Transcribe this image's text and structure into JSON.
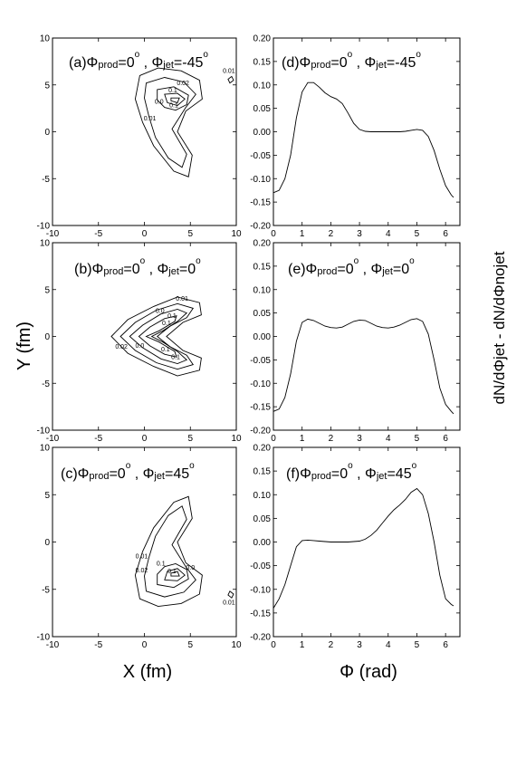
{
  "figure": {
    "xlabel_left": "X (fm)",
    "ylabel_left": "Y (fm)",
    "xlabel_right": "Φ (rad)",
    "ylabel_right": "dN/dΦjet - dN/dΦnojet"
  },
  "chart_data": [
    {
      "id": "a",
      "type": "contour",
      "title": "(a)Φprod=0°, Φjet=-45°",
      "panel_label": "(a)",
      "prod_label": "prod",
      "jet_label": "jet",
      "prod_value": "0",
      "jet_value": "-45",
      "degree": "o",
      "xlim": [
        -10,
        10
      ],
      "ylim": [
        -10,
        10
      ],
      "xticks": [
        -10,
        -5,
        0,
        5,
        10
      ],
      "yticks": [
        -10,
        -5,
        0,
        5,
        10
      ],
      "contour_labels": [
        "0.02",
        "0.0",
        "0.01",
        "0.1",
        "0.1",
        "0.01"
      ]
    },
    {
      "id": "b",
      "type": "contour",
      "title": "(b)Φprod=0°, Φjet=0°",
      "panel_label": "(b)",
      "prod_label": "prod",
      "jet_label": "jet",
      "prod_value": "0",
      "jet_value": "0",
      "degree": "o",
      "xlim": [
        -10,
        10
      ],
      "ylim": [
        -10,
        10
      ],
      "xticks": [
        -10,
        -5,
        0,
        5,
        10
      ],
      "yticks": [
        -10,
        -5,
        0,
        5,
        10
      ],
      "contour_labels": [
        "0.01",
        "0.0",
        "0.1",
        "0.1",
        "0.02",
        "0.0",
        "0.1",
        "0.1"
      ]
    },
    {
      "id": "c",
      "type": "contour",
      "title": "(c)Φprod=0°, Φjet=45°",
      "panel_label": "(c)",
      "prod_label": "prod",
      "jet_label": "jet",
      "prod_value": "0",
      "jet_value": "45",
      "degree": "o",
      "xlim": [
        -10,
        10
      ],
      "ylim": [
        -10,
        10
      ],
      "xticks": [
        -10,
        -5,
        0,
        5,
        10
      ],
      "yticks": [
        -10,
        -5,
        0,
        5,
        10
      ],
      "contour_labels": [
        "0.01",
        "0.1",
        "0.02",
        "0.1",
        "0.0",
        "0.01"
      ]
    },
    {
      "id": "d",
      "type": "line",
      "title": "(d)Φprod=0°, Φjet=-45°",
      "panel_label": "(d)",
      "prod_label": "prod",
      "jet_label": "jet",
      "prod_value": "0",
      "jet_value": "-45",
      "degree": "o",
      "xlim": [
        0,
        6.5
      ],
      "ylim": [
        -0.2,
        0.2
      ],
      "xticks": [
        0,
        1,
        2,
        3,
        4,
        5,
        6
      ],
      "yticks": [
        -0.2,
        -0.15,
        -0.1,
        -0.05,
        0.0,
        0.05,
        0.1,
        0.15,
        0.2
      ],
      "x": [
        0,
        0.2,
        0.4,
        0.6,
        0.8,
        1.0,
        1.2,
        1.4,
        1.6,
        1.8,
        2.0,
        2.2,
        2.4,
        2.6,
        2.8,
        3.0,
        3.2,
        3.4,
        3.6,
        3.8,
        4.0,
        4.2,
        4.4,
        4.6,
        4.8,
        5.0,
        5.2,
        5.4,
        5.6,
        5.8,
        6.0,
        6.2,
        6.28
      ],
      "y": [
        -0.13,
        -0.125,
        -0.1,
        -0.05,
        0.03,
        0.085,
        0.105,
        0.105,
        0.095,
        0.083,
        0.075,
        0.07,
        0.06,
        0.04,
        0.018,
        0.005,
        0.001,
        0.0,
        0.0,
        0.0,
        0.0,
        0.0,
        0.0,
        0.001,
        0.003,
        0.005,
        0.003,
        -0.01,
        -0.04,
        -0.08,
        -0.115,
        -0.135,
        -0.14
      ]
    },
    {
      "id": "e",
      "type": "line",
      "title": "(e)Φprod=0°, Φjet=0°",
      "panel_label": "(e)",
      "prod_label": "prod",
      "jet_label": "jet",
      "prod_value": "0",
      "jet_value": "0",
      "degree": "o",
      "xlim": [
        0,
        6.5
      ],
      "ylim": [
        -0.2,
        0.2
      ],
      "xticks": [
        0,
        1,
        2,
        3,
        4,
        5,
        6
      ],
      "yticks": [
        -0.2,
        -0.15,
        -0.1,
        -0.05,
        0.0,
        0.05,
        0.1,
        0.15,
        0.2
      ],
      "x": [
        0,
        0.2,
        0.4,
        0.6,
        0.8,
        1.0,
        1.2,
        1.4,
        1.6,
        1.8,
        2.0,
        2.2,
        2.4,
        2.6,
        2.8,
        3.0,
        3.2,
        3.4,
        3.6,
        3.8,
        4.0,
        4.2,
        4.4,
        4.6,
        4.8,
        5.0,
        5.2,
        5.4,
        5.6,
        5.8,
        6.0,
        6.2,
        6.28
      ],
      "y": [
        -0.16,
        -0.155,
        -0.13,
        -0.08,
        -0.01,
        0.03,
        0.037,
        0.034,
        0.028,
        0.022,
        0.019,
        0.018,
        0.02,
        0.026,
        0.032,
        0.035,
        0.034,
        0.028,
        0.022,
        0.019,
        0.018,
        0.02,
        0.024,
        0.03,
        0.036,
        0.038,
        0.032,
        0.005,
        -0.05,
        -0.11,
        -0.145,
        -0.16,
        -0.165
      ]
    },
    {
      "id": "f",
      "type": "line",
      "title": "(f)Φprod=0°, Φjet=45°",
      "panel_label": "(f)",
      "prod_label": "prod",
      "jet_label": "jet",
      "prod_value": "0",
      "jet_value": "45",
      "degree": "o",
      "xlim": [
        0,
        6.5
      ],
      "ylim": [
        -0.2,
        0.2
      ],
      "xticks": [
        0,
        1,
        2,
        3,
        4,
        5,
        6
      ],
      "yticks": [
        -0.2,
        -0.15,
        -0.1,
        -0.05,
        0.0,
        0.05,
        0.1,
        0.15,
        0.2
      ],
      "x": [
        0,
        0.2,
        0.4,
        0.6,
        0.8,
        1.0,
        1.2,
        1.4,
        1.6,
        1.8,
        2.0,
        2.2,
        2.4,
        2.6,
        2.8,
        3.0,
        3.2,
        3.4,
        3.6,
        3.8,
        4.0,
        4.2,
        4.4,
        4.6,
        4.8,
        5.0,
        5.2,
        5.4,
        5.6,
        5.8,
        6.0,
        6.2,
        6.28
      ],
      "y": [
        -0.14,
        -0.12,
        -0.09,
        -0.05,
        -0.01,
        0.003,
        0.004,
        0.003,
        0.002,
        0.001,
        0.0,
        0.0,
        0.0,
        0.0,
        0.001,
        0.002,
        0.006,
        0.014,
        0.025,
        0.04,
        0.055,
        0.068,
        0.078,
        0.09,
        0.105,
        0.113,
        0.1,
        0.06,
        0.0,
        -0.07,
        -0.12,
        -0.132,
        -0.135
      ]
    }
  ]
}
